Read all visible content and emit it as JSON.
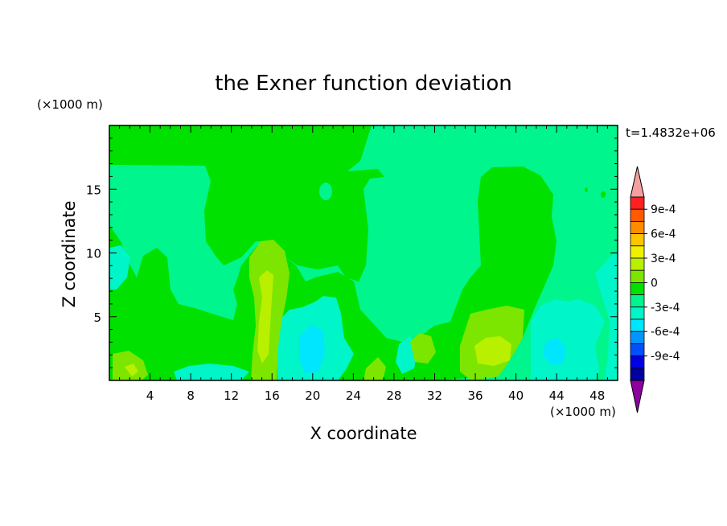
{
  "chart_data": {
    "type": "heatmap",
    "title": "the Exner function deviation",
    "xlabel": "X coordinate",
    "ylabel": "Z coordinate",
    "x_unit": "(×1000 m)",
    "y_unit": "(×1000 m)",
    "time_label": "t=1.4832e+06",
    "xlim": [
      0,
      50
    ],
    "ylim": [
      0,
      20
    ],
    "x_ticks": [
      4,
      8,
      12,
      16,
      20,
      24,
      28,
      32,
      36,
      40,
      44,
      48
    ],
    "y_ticks": [
      5,
      10,
      15
    ],
    "colorbar": {
      "labels": [
        "9e-4",
        "6e-4",
        "3e-4",
        "0",
        "-3e-4",
        "-6e-4",
        "-9e-4"
      ],
      "levels_top_to_bottom": [
        {
          "value": "above",
          "color": "#f5a0a0"
        },
        {
          "value": "9e-4",
          "color": "#ff2020"
        },
        {
          "value": "7.5e-4",
          "color": "#ff5a00"
        },
        {
          "value": "6e-4",
          "color": "#ff8c00"
        },
        {
          "value": "4.5e-4",
          "color": "#ffc400"
        },
        {
          "value": "3e-4",
          "color": "#f0f000"
        },
        {
          "value": "1.5e-4",
          "color": "#b8f000"
        },
        {
          "value": "0",
          "color": "#7ce600"
        },
        {
          "value": "0-",
          "color": "#00e100"
        },
        {
          "value": "-1.5e-4",
          "color": "#00f58c"
        },
        {
          "value": "-3e-4",
          "color": "#00f5c8"
        },
        {
          "value": "-4.5e-4",
          "color": "#00e6ff"
        },
        {
          "value": "-6e-4",
          "color": "#0096ff"
        },
        {
          "value": "-7.5e-4",
          "color": "#0050ff"
        },
        {
          "value": "-9e-4",
          "color": "#0000e6"
        },
        {
          "value": "-1.05e-3",
          "color": "#0000a0"
        },
        {
          "value": "below",
          "color": "#8c00a0"
        }
      ]
    },
    "fields": {
      "background": "#00f58c",
      "positive_weak": "#00e100",
      "positive_mid": "#7ce600",
      "positive_strong": "#b8f000",
      "negative_weak": "#00f5c8",
      "negative_mid": "#00e6ff"
    }
  }
}
